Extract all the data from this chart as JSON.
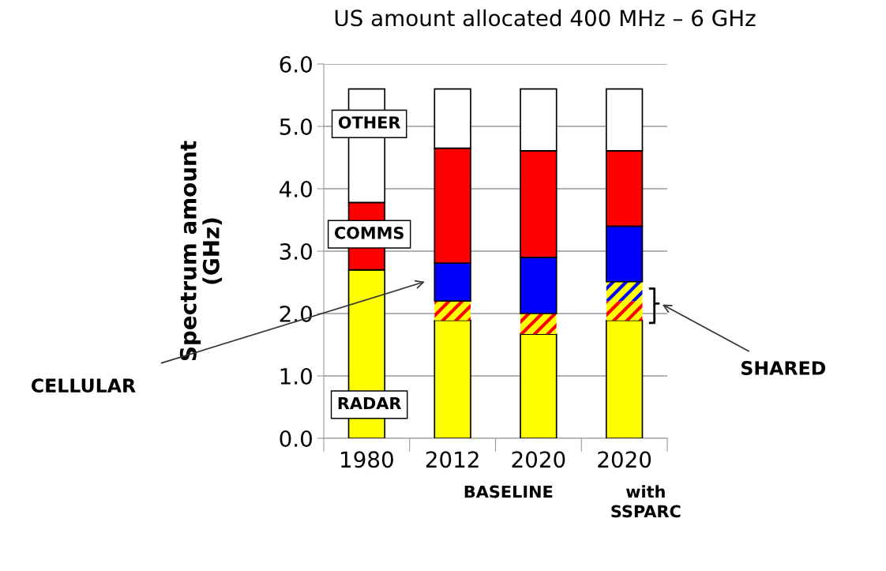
{
  "chart_data": {
    "type": "bar",
    "stacked": true,
    "title": "US amount allocated 400 MHz – 6 GHz",
    "ylabel": "Spectrum amount\n(GHz)",
    "categories": [
      "1980",
      "2012",
      "2020\nBASELINE",
      "2020\nwith\nSSPARC"
    ],
    "series": [
      {
        "name": "RADAR",
        "color": "#ffff00",
        "values": [
          2.7,
          1.89,
          1.67,
          1.89
        ]
      },
      {
        "color": "#ff0000",
        "values": [
          0,
          0.31,
          0.33,
          0.31
        ]
      },
      {
        "color": "#0000ff",
        "values": [
          0,
          0,
          0,
          0.31
        ]
      },
      {
        "color": "#0000ff",
        "values": [
          0,
          0.61,
          0.9,
          0.89
        ]
      },
      {
        "name": "COMMS",
        "color": "#ff0000",
        "values": [
          1.08,
          1.84,
          1.71,
          1.21
        ]
      },
      {
        "name": "OTHER",
        "color": "#ffffff",
        "values": [
          1.82,
          0.95,
          0.99,
          0.99
        ]
      }
    ],
    "annotations": [
      "CELLULAR",
      "SHARED"
    ],
    "ylim": [
      0,
      6
    ],
    "yticks": [
      {
        "value": 0,
        "label": "0.0"
      },
      {
        "value": 1,
        "label": "1.0"
      },
      {
        "value": 2,
        "label": "2.0"
      },
      {
        "value": 3,
        "label": "3.0"
      },
      {
        "value": 4,
        "label": "4.0"
      },
      {
        "value": 5,
        "label": "5.0"
      },
      {
        "value": 6,
        "label": "6.0"
      }
    ],
    "grid": "y"
  }
}
